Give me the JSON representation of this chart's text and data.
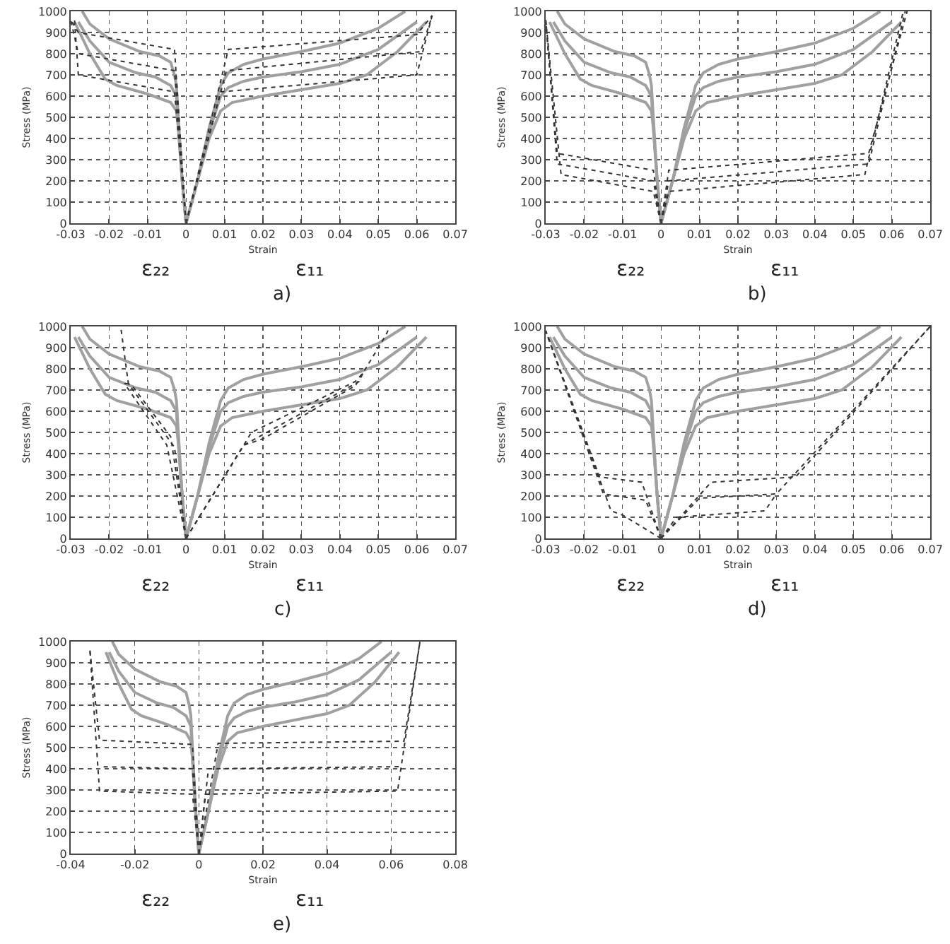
{
  "chart_data": [
    {
      "type": "line",
      "xlabel": "Strain",
      "ylabel": "Stress (MPa)",
      "annotations": [
        "ε₂₂",
        "ε₁₁",
        "a)"
      ],
      "xlim": [
        -0.03,
        0.07
      ],
      "xticks": [
        -0.03,
        -0.02,
        -0.01,
        0,
        0.01,
        0.02,
        0.03,
        0.04,
        0.05,
        0.06,
        0.07
      ],
      "ylim": [
        0,
        1000
      ],
      "yticks": [
        0,
        100,
        200,
        300,
        400,
        500,
        600,
        700,
        800,
        900,
        1000
      ],
      "grid": true,
      "series": [
        {
          "color": "#a0a0a0",
          "line_style": "solid",
          "x": [
            0,
            0.003,
            0.006,
            0.009,
            0.011,
            0.015,
            0.02,
            0.03,
            0.04,
            0.05,
            0.057
          ],
          "values": [
            0,
            200,
            450,
            650,
            710,
            750,
            775,
            810,
            850,
            920,
            1000
          ]
        },
        {
          "color": "#a0a0a0",
          "line_style": "solid",
          "x": [
            0,
            -0.001,
            -0.002,
            -0.0025,
            -0.003,
            -0.004,
            -0.007,
            -0.012,
            -0.02,
            -0.025,
            -0.027
          ],
          "values": [
            0,
            200,
            500,
            650,
            700,
            760,
            790,
            810,
            870,
            940,
            1000
          ]
        },
        {
          "color": "#a0a0a0",
          "line_style": "solid",
          "x": [
            0,
            0.003,
            0.006,
            0.009,
            0.011,
            0.015,
            0.02,
            0.03,
            0.04,
            0.05,
            0.06
          ],
          "values": [
            0,
            200,
            430,
            600,
            640,
            670,
            690,
            715,
            750,
            820,
            950
          ]
        },
        {
          "color": "#a0a0a0",
          "line_style": "solid",
          "x": [
            0,
            -0.001,
            -0.002,
            -0.0025,
            -0.004,
            -0.008,
            -0.013,
            -0.02,
            -0.025,
            -0.028
          ],
          "values": [
            0,
            200,
            450,
            600,
            650,
            690,
            710,
            760,
            860,
            950
          ]
        },
        {
          "color": "#a0a0a0",
          "line_style": "solid",
          "x": [
            0,
            0.003,
            0.006,
            0.009,
            0.012,
            0.02,
            0.03,
            0.04,
            0.047,
            0.055,
            0.0625
          ],
          "values": [
            0,
            200,
            400,
            530,
            570,
            600,
            630,
            660,
            700,
            810,
            950
          ]
        },
        {
          "color": "#a0a0a0",
          "line_style": "solid",
          "x": [
            0,
            -0.001,
            -0.002,
            -0.0025,
            -0.004,
            -0.01,
            -0.018,
            -0.021,
            -0.025,
            -0.029
          ],
          "values": [
            0,
            200,
            450,
            530,
            570,
            610,
            650,
            680,
            800,
            950
          ]
        },
        {
          "color": "#333333",
          "line_style": "dotted",
          "x": [
            0,
            0.011,
            0.06,
            0.064
          ],
          "values": [
            0,
            820,
            890,
            980
          ]
        },
        {
          "color": "#333333",
          "line_style": "dotted",
          "x": [
            0,
            0.0105,
            0.061,
            0.064
          ],
          "values": [
            0,
            720,
            810,
            980
          ]
        },
        {
          "color": "#333333",
          "line_style": "dotted",
          "x": [
            0,
            0.009,
            0.06,
            0.064
          ],
          "values": [
            0,
            620,
            700,
            980
          ]
        },
        {
          "color": "#333333",
          "line_style": "dotted",
          "x": [
            0,
            -0.003,
            -0.028,
            -0.03
          ],
          "values": [
            0,
            820,
            900,
            960
          ]
        },
        {
          "color": "#333333",
          "line_style": "dotted",
          "x": [
            0,
            -0.003,
            -0.028,
            -0.03
          ],
          "values": [
            0,
            720,
            800,
            960
          ]
        },
        {
          "color": "#333333",
          "line_style": "dotted",
          "x": [
            0,
            -0.003,
            -0.028,
            -0.029
          ],
          "values": [
            0,
            620,
            700,
            960
          ]
        }
      ]
    },
    {
      "type": "line",
      "xlabel": "Strain",
      "ylabel": "Stress (MPa)",
      "annotations": [
        "ε₂₂",
        "ε₁₁",
        "b)"
      ],
      "xlim": [
        -0.03,
        0.07
      ],
      "xticks": [
        -0.03,
        -0.02,
        -0.01,
        0,
        0.01,
        0.02,
        0.03,
        0.04,
        0.05,
        0.06,
        0.07
      ],
      "ylim": [
        0,
        1000
      ],
      "yticks": [
        0,
        100,
        200,
        300,
        400,
        500,
        600,
        700,
        800,
        900,
        1000
      ],
      "grid": true,
      "series": [
        {
          "color": "#a0a0a0",
          "line_style": "solid",
          "x": [
            0,
            0.003,
            0.006,
            0.009,
            0.011,
            0.015,
            0.02,
            0.03,
            0.04,
            0.05,
            0.057
          ],
          "values": [
            0,
            200,
            450,
            650,
            710,
            750,
            775,
            810,
            850,
            920,
            1000
          ]
        },
        {
          "color": "#a0a0a0",
          "line_style": "solid",
          "x": [
            0,
            -0.001,
            -0.002,
            -0.0025,
            -0.003,
            -0.004,
            -0.007,
            -0.012,
            -0.02,
            -0.025,
            -0.027
          ],
          "values": [
            0,
            200,
            500,
            650,
            700,
            760,
            790,
            810,
            870,
            940,
            1000
          ]
        },
        {
          "color": "#a0a0a0",
          "line_style": "solid",
          "x": [
            0,
            0.003,
            0.006,
            0.009,
            0.011,
            0.015,
            0.02,
            0.03,
            0.04,
            0.05,
            0.06
          ],
          "values": [
            0,
            200,
            430,
            600,
            640,
            670,
            690,
            715,
            750,
            820,
            950
          ]
        },
        {
          "color": "#a0a0a0",
          "line_style": "solid",
          "x": [
            0,
            -0.001,
            -0.002,
            -0.0025,
            -0.004,
            -0.008,
            -0.013,
            -0.02,
            -0.025,
            -0.028
          ],
          "values": [
            0,
            200,
            450,
            600,
            650,
            690,
            710,
            760,
            860,
            950
          ]
        },
        {
          "color": "#a0a0a0",
          "line_style": "solid",
          "x": [
            0,
            0.003,
            0.006,
            0.009,
            0.012,
            0.02,
            0.03,
            0.04,
            0.047,
            0.055,
            0.0625
          ],
          "values": [
            0,
            200,
            400,
            530,
            570,
            600,
            630,
            660,
            700,
            810,
            950
          ]
        },
        {
          "color": "#a0a0a0",
          "line_style": "solid",
          "x": [
            0,
            -0.001,
            -0.002,
            -0.0025,
            -0.004,
            -0.01,
            -0.018,
            -0.021,
            -0.025,
            -0.029
          ],
          "values": [
            0,
            200,
            450,
            530,
            570,
            610,
            650,
            680,
            800,
            950
          ]
        },
        {
          "color": "#333333",
          "line_style": "dotted",
          "x": [
            0,
            0.002,
            0.054,
            0.064
          ],
          "values": [
            0,
            250,
            330,
            1000
          ]
        },
        {
          "color": "#333333",
          "line_style": "dotted",
          "x": [
            0,
            0.002,
            0.054,
            0.0635
          ],
          "values": [
            0,
            200,
            280,
            1000
          ]
        },
        {
          "color": "#333333",
          "line_style": "dotted",
          "x": [
            0,
            0.002,
            0.053,
            0.063
          ],
          "values": [
            0,
            150,
            230,
            1000
          ]
        },
        {
          "color": "#333333",
          "line_style": "dotted",
          "x": [
            0,
            -0.002,
            -0.027,
            -0.03
          ],
          "values": [
            0,
            250,
            330,
            960
          ]
        },
        {
          "color": "#333333",
          "line_style": "dotted",
          "x": [
            0,
            -0.002,
            -0.027,
            -0.03
          ],
          "values": [
            0,
            200,
            280,
            960
          ]
        },
        {
          "color": "#333333",
          "line_style": "dotted",
          "x": [
            0,
            -0.002,
            -0.026,
            -0.03
          ],
          "values": [
            0,
            150,
            230,
            960
          ]
        }
      ]
    },
    {
      "type": "line",
      "xlabel": "Strain",
      "ylabel": "Stress (MPa)",
      "annotations": [
        "ε₂₂",
        "ε₁₁",
        "c)"
      ],
      "xlim": [
        -0.03,
        0.07
      ],
      "xticks": [
        -0.03,
        -0.02,
        -0.01,
        0,
        0.01,
        0.02,
        0.03,
        0.04,
        0.05,
        0.06,
        0.07
      ],
      "ylim": [
        0,
        1000
      ],
      "yticks": [
        0,
        100,
        200,
        300,
        400,
        500,
        600,
        700,
        800,
        900,
        1000
      ],
      "grid": true,
      "series": [
        {
          "color": "#a0a0a0",
          "line_style": "solid",
          "x": [
            0,
            0.003,
            0.006,
            0.009,
            0.011,
            0.015,
            0.02,
            0.03,
            0.04,
            0.05,
            0.057
          ],
          "values": [
            0,
            200,
            450,
            650,
            710,
            750,
            775,
            810,
            850,
            920,
            1000
          ]
        },
        {
          "color": "#a0a0a0",
          "line_style": "solid",
          "x": [
            0,
            -0.001,
            -0.002,
            -0.0025,
            -0.003,
            -0.004,
            -0.007,
            -0.012,
            -0.02,
            -0.025,
            -0.027
          ],
          "values": [
            0,
            200,
            500,
            650,
            700,
            760,
            790,
            810,
            870,
            940,
            1000
          ]
        },
        {
          "color": "#a0a0a0",
          "line_style": "solid",
          "x": [
            0,
            0.003,
            0.006,
            0.009,
            0.011,
            0.015,
            0.02,
            0.03,
            0.04,
            0.05,
            0.06
          ],
          "values": [
            0,
            200,
            430,
            600,
            640,
            670,
            690,
            715,
            750,
            820,
            950
          ]
        },
        {
          "color": "#a0a0a0",
          "line_style": "solid",
          "x": [
            0,
            -0.001,
            -0.002,
            -0.0025,
            -0.004,
            -0.008,
            -0.013,
            -0.02,
            -0.025,
            -0.028
          ],
          "values": [
            0,
            200,
            450,
            600,
            650,
            690,
            710,
            760,
            860,
            950
          ]
        },
        {
          "color": "#a0a0a0",
          "line_style": "solid",
          "x": [
            0,
            0.003,
            0.006,
            0.009,
            0.012,
            0.02,
            0.03,
            0.04,
            0.047,
            0.055,
            0.0625
          ],
          "values": [
            0,
            200,
            400,
            530,
            570,
            600,
            630,
            660,
            700,
            810,
            950
          ]
        },
        {
          "color": "#a0a0a0",
          "line_style": "solid",
          "x": [
            0,
            -0.001,
            -0.002,
            -0.0025,
            -0.004,
            -0.01,
            -0.018,
            -0.021,
            -0.025,
            -0.029
          ],
          "values": [
            0,
            200,
            450,
            530,
            570,
            610,
            650,
            680,
            800,
            950
          ]
        },
        {
          "color": "#333333",
          "line_style": "dotted",
          "x": [
            0,
            0.015,
            0.017,
            0.044,
            0.046,
            0.052,
            0.053
          ],
          "values": [
            0,
            440,
            500,
            740,
            780,
            960,
            1000
          ]
        },
        {
          "color": "#333333",
          "line_style": "dotted",
          "x": [
            0,
            0.015,
            0.02,
            0.045,
            0.046
          ],
          "values": [
            0,
            440,
            490,
            740,
            780
          ]
        },
        {
          "color": "#333333",
          "line_style": "dotted",
          "x": [
            0,
            0.015,
            0.02,
            0.044,
            0.046
          ],
          "values": [
            0,
            440,
            470,
            720,
            780
          ]
        },
        {
          "color": "#333333",
          "line_style": "dotted",
          "x": [
            0,
            -0.003,
            -0.015,
            -0.017
          ],
          "values": [
            0,
            430,
            730,
            1000
          ]
        },
        {
          "color": "#333333",
          "line_style": "dotted",
          "x": [
            0,
            -0.004,
            -0.014,
            -0.015
          ],
          "values": [
            0,
            480,
            720,
            730
          ]
        },
        {
          "color": "#333333",
          "line_style": "dotted",
          "x": [
            0,
            -0.005,
            -0.016,
            -0.015
          ],
          "values": [
            0,
            440,
            730,
            730
          ]
        }
      ]
    },
    {
      "type": "line",
      "xlabel": "Strain",
      "ylabel": "Stress (MPa)",
      "annotations": [
        "ε₂₂",
        "ε₁₁",
        "d)"
      ],
      "xlim": [
        -0.03,
        0.07
      ],
      "xticks": [
        -0.03,
        -0.02,
        -0.01,
        0,
        0.01,
        0.02,
        0.03,
        0.04,
        0.05,
        0.06,
        0.07
      ],
      "ylim": [
        0,
        1000
      ],
      "yticks": [
        0,
        100,
        200,
        300,
        400,
        500,
        600,
        700,
        800,
        900,
        1000
      ],
      "grid": true,
      "series": [
        {
          "color": "#a0a0a0",
          "line_style": "solid",
          "x": [
            0,
            0.003,
            0.006,
            0.009,
            0.011,
            0.015,
            0.02,
            0.03,
            0.04,
            0.05,
            0.057
          ],
          "values": [
            0,
            200,
            450,
            650,
            710,
            750,
            775,
            810,
            850,
            920,
            1000
          ]
        },
        {
          "color": "#a0a0a0",
          "line_style": "solid",
          "x": [
            0,
            -0.001,
            -0.002,
            -0.0025,
            -0.003,
            -0.004,
            -0.007,
            -0.012,
            -0.02,
            -0.025,
            -0.027
          ],
          "values": [
            0,
            200,
            500,
            650,
            700,
            760,
            790,
            810,
            870,
            940,
            1000
          ]
        },
        {
          "color": "#a0a0a0",
          "line_style": "solid",
          "x": [
            0,
            0.003,
            0.006,
            0.009,
            0.011,
            0.015,
            0.02,
            0.03,
            0.04,
            0.05,
            0.06
          ],
          "values": [
            0,
            200,
            430,
            600,
            640,
            670,
            690,
            715,
            750,
            820,
            950
          ]
        },
        {
          "color": "#a0a0a0",
          "line_style": "solid",
          "x": [
            0,
            -0.001,
            -0.002,
            -0.0025,
            -0.004,
            -0.008,
            -0.013,
            -0.02,
            -0.025,
            -0.028
          ],
          "values": [
            0,
            200,
            450,
            600,
            650,
            690,
            710,
            760,
            860,
            950
          ]
        },
        {
          "color": "#a0a0a0",
          "line_style": "solid",
          "x": [
            0,
            0.003,
            0.006,
            0.009,
            0.012,
            0.02,
            0.03,
            0.04,
            0.047,
            0.055,
            0.0625
          ],
          "values": [
            0,
            200,
            400,
            530,
            570,
            600,
            630,
            660,
            700,
            810,
            950
          ]
        },
        {
          "color": "#a0a0a0",
          "line_style": "solid",
          "x": [
            0,
            -0.001,
            -0.002,
            -0.0025,
            -0.004,
            -0.01,
            -0.018,
            -0.021,
            -0.025,
            -0.029
          ],
          "values": [
            0,
            200,
            450,
            530,
            570,
            610,
            650,
            680,
            800,
            950
          ]
        },
        {
          "color": "#333333",
          "line_style": "dotted",
          "x": [
            0,
            0.013,
            0.035,
            0.07
          ],
          "values": [
            0,
            265,
            290,
            1000
          ]
        },
        {
          "color": "#333333",
          "line_style": "dotted",
          "x": [
            0,
            0.01,
            0.03,
            0.07
          ],
          "values": [
            0,
            190,
            210,
            1000
          ]
        },
        {
          "color": "#333333",
          "line_style": "dotted",
          "x": [
            0,
            0.004,
            0.027,
            0.03
          ],
          "values": [
            0,
            100,
            130,
            210
          ]
        },
        {
          "color": "#333333",
          "line_style": "dotted",
          "x": [
            0,
            -0.005,
            -0.016,
            -0.03
          ],
          "values": [
            0,
            265,
            290,
            980
          ]
        },
        {
          "color": "#333333",
          "line_style": "dotted",
          "x": [
            0,
            -0.004,
            -0.015,
            -0.03
          ],
          "values": [
            0,
            180,
            210,
            980
          ]
        },
        {
          "color": "#333333",
          "line_style": "dotted",
          "x": [
            0,
            -0.01,
            -0.013,
            -0.03
          ],
          "values": [
            0,
            110,
            130,
            980
          ]
        }
      ]
    },
    {
      "type": "line",
      "xlabel": "Strain",
      "ylabel": "Stress (MPa)",
      "annotations": [
        "ε₂₂",
        "ε₁₁",
        "e)"
      ],
      "xlim": [
        -0.04,
        0.08
      ],
      "xticks": [
        -0.04,
        -0.02,
        0,
        0.02,
        0.04,
        0.06,
        0.08
      ],
      "ylim": [
        0,
        1000
      ],
      "yticks": [
        0,
        100,
        200,
        300,
        400,
        500,
        600,
        700,
        800,
        900,
        1000
      ],
      "grid": true,
      "series": [
        {
          "color": "#a0a0a0",
          "line_style": "solid",
          "x": [
            0,
            0.003,
            0.006,
            0.009,
            0.011,
            0.015,
            0.02,
            0.03,
            0.04,
            0.05,
            0.057
          ],
          "values": [
            0,
            200,
            450,
            650,
            710,
            750,
            775,
            810,
            850,
            920,
            1000
          ]
        },
        {
          "color": "#a0a0a0",
          "line_style": "solid",
          "x": [
            0,
            -0.001,
            -0.002,
            -0.0025,
            -0.003,
            -0.004,
            -0.007,
            -0.012,
            -0.02,
            -0.025,
            -0.027
          ],
          "values": [
            0,
            200,
            500,
            650,
            700,
            760,
            790,
            810,
            870,
            940,
            1000
          ]
        },
        {
          "color": "#a0a0a0",
          "line_style": "solid",
          "x": [
            0,
            0.003,
            0.006,
            0.009,
            0.011,
            0.015,
            0.02,
            0.03,
            0.04,
            0.05,
            0.06
          ],
          "values": [
            0,
            200,
            430,
            600,
            640,
            670,
            690,
            715,
            750,
            820,
            950
          ]
        },
        {
          "color": "#a0a0a0",
          "line_style": "solid",
          "x": [
            0,
            -0.001,
            -0.002,
            -0.0025,
            -0.004,
            -0.008,
            -0.013,
            -0.02,
            -0.025,
            -0.028
          ],
          "values": [
            0,
            200,
            450,
            600,
            650,
            690,
            710,
            760,
            860,
            950
          ]
        },
        {
          "color": "#a0a0a0",
          "line_style": "solid",
          "x": [
            0,
            0.003,
            0.006,
            0.009,
            0.012,
            0.02,
            0.03,
            0.04,
            0.047,
            0.055,
            0.0625
          ],
          "values": [
            0,
            200,
            400,
            530,
            570,
            600,
            630,
            660,
            700,
            810,
            950
          ]
        },
        {
          "color": "#a0a0a0",
          "line_style": "solid",
          "x": [
            0,
            -0.001,
            -0.002,
            -0.0025,
            -0.004,
            -0.01,
            -0.018,
            -0.021,
            -0.025,
            -0.029
          ],
          "values": [
            0,
            200,
            450,
            530,
            570,
            610,
            650,
            680,
            800,
            950
          ]
        },
        {
          "color": "#333333",
          "line_style": "dotted",
          "x": [
            0,
            0.006,
            0.064,
            0.069
          ],
          "values": [
            0,
            520,
            530,
            1000
          ]
        },
        {
          "color": "#333333",
          "line_style": "dotted",
          "x": [
            0,
            0.003,
            0.063
          ],
          "values": [
            0,
            400,
            410
          ]
        },
        {
          "color": "#333333",
          "line_style": "dotted",
          "x": [
            0,
            0.002,
            0.062,
            0.069
          ],
          "values": [
            0,
            280,
            295,
            1000
          ]
        },
        {
          "color": "#333333",
          "line_style": "dotted",
          "x": [
            0,
            -0.002,
            -0.031,
            -0.034
          ],
          "values": [
            0,
            515,
            535,
            960
          ]
        },
        {
          "color": "#333333",
          "line_style": "dotted",
          "x": [
            0,
            -0.002,
            -0.031
          ],
          "values": [
            0,
            400,
            410
          ]
        },
        {
          "color": "#333333",
          "line_style": "dotted",
          "x": [
            0,
            -0.002,
            -0.031,
            -0.034
          ],
          "values": [
            0,
            280,
            295,
            960
          ]
        }
      ]
    }
  ]
}
